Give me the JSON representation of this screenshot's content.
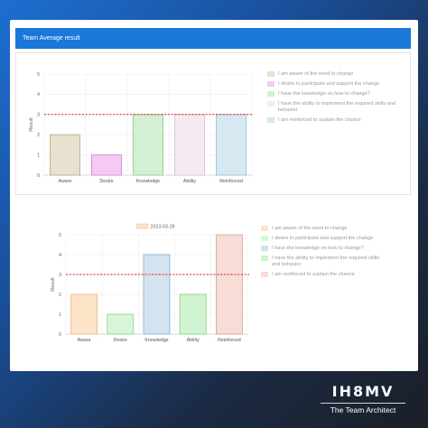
{
  "header": {
    "title": "Team Average result"
  },
  "colors": {
    "header_bg": "#1a78d8",
    "target_line": "#e02424",
    "palette_top": [
      {
        "fill": "#e6e2cf",
        "stroke": "#b8b092"
      },
      {
        "fill": "#f6c9f4",
        "stroke": "#d48ad0"
      },
      {
        "fill": "#d3f0d3",
        "stroke": "#95cc95"
      },
      {
        "fill": "#f5eaf2",
        "stroke": "#d8c4d2"
      },
      {
        "fill": "#d6e9f2",
        "stroke": "#9cc5d8"
      }
    ],
    "palette_bottom": [
      {
        "fill": "#fde3c8",
        "stroke": "#e9bd90"
      },
      {
        "fill": "#d6f6d6",
        "stroke": "#97d497"
      },
      {
        "fill": "#d3e4f0",
        "stroke": "#8fb3cc"
      },
      {
        "fill": "#d0f3d0",
        "stroke": "#8fcf8f"
      },
      {
        "fill": "#f8dcd6",
        "stroke": "#d9a79c"
      }
    ]
  },
  "top_legend": [
    "I am aware of the need to change",
    "I desire to participate and support the change",
    "I have the knowledge on how to change?",
    "I have the ability to implement the required skills and behavior",
    "I am reinforced to sustain the chance"
  ],
  "bottom_legend": [
    "I am aware of the need to change",
    "I desire to participate and support the change",
    "I have the knowledge on how to change?",
    "I have the ability to implement the required skills and behavior",
    "I am reinforced to sustain the chance"
  ],
  "chart_data": [
    {
      "type": "bar",
      "title": "",
      "categories": [
        "Aware",
        "Desire",
        "Knowledge",
        "Ability",
        "Reinforced"
      ],
      "values": [
        2,
        1,
        3,
        3,
        3
      ],
      "ylabel": "Result",
      "xlabel": "",
      "ylim": [
        0,
        5
      ],
      "yticks": [
        "0",
        "1",
        "2",
        "3",
        "4",
        "5"
      ],
      "target_line": 3,
      "grid": true,
      "legend": "right"
    },
    {
      "type": "bar",
      "title": "",
      "categories": [
        "Aware",
        "Desire",
        "Knowledge",
        "Ability",
        "Reinforced"
      ],
      "series": [
        {
          "name": "2023-03-28",
          "values": [
            2,
            1,
            4,
            2,
            5
          ]
        }
      ],
      "ylabel": "Result",
      "xlabel": "",
      "ylim": [
        0,
        5
      ],
      "yticks": [
        "0",
        "1",
        "2",
        "3",
        "4",
        "5"
      ],
      "target_line": 3,
      "grid": true,
      "legend": "top"
    }
  ],
  "brand": {
    "logo": "IH8MV",
    "name": "The Team Architect"
  }
}
